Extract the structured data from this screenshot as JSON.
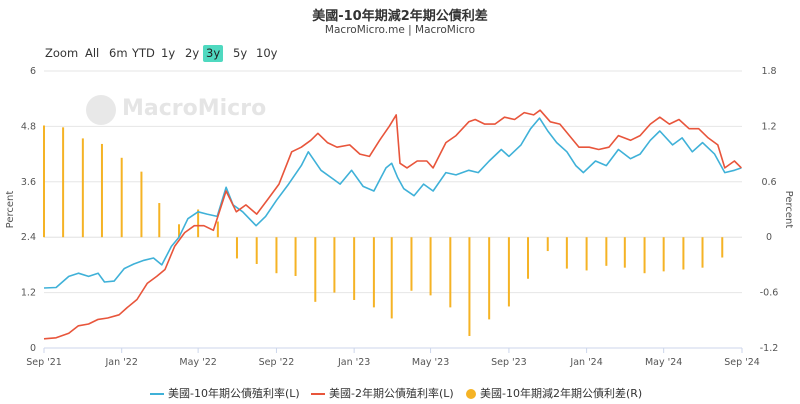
{
  "header": {
    "title": "美國-10年期減2年期公債利差",
    "subtitle": "MacroMicro.me | MacroMicro"
  },
  "watermark": "MacroMicro",
  "range_selector": {
    "items": [
      "Zoom",
      "All",
      "6m",
      "YTD",
      "1y",
      "2y",
      "3y",
      "5y",
      "10y"
    ],
    "active": "3y"
  },
  "colors": {
    "ten_year": "#3fb1d8",
    "two_year": "#e8553b",
    "spread": "#f5b325"
  },
  "chart_data": {
    "type": "line",
    "title": "美國-10年期減2年期公債利差",
    "subtitle": "MacroMicro.me | MacroMicro",
    "y_left_label": "Percent",
    "y_right_label": "Percent",
    "y_left_range": [
      0,
      6
    ],
    "y_right_range": [
      -1.2,
      1.8
    ],
    "y_left_ticks": [
      "0",
      "1.2",
      "2.4",
      "3.6",
      "4.8",
      "6"
    ],
    "y_right_ticks": [
      "-1.2",
      "-0.6",
      "0",
      "0.6",
      "1.2",
      "1.8"
    ],
    "x_range": [
      "2021-09-01",
      "2024-09-01"
    ],
    "x_ticks": [
      {
        "date": "2021-09-01",
        "label": "Sep '21"
      },
      {
        "date": "2022-01-01",
        "label": "Jan '22"
      },
      {
        "date": "2022-05-01",
        "label": "May '22"
      },
      {
        "date": "2022-09-01",
        "label": "Sep '22"
      },
      {
        "date": "2023-01-01",
        "label": "Jan '23"
      },
      {
        "date": "2023-05-01",
        "label": "May '23"
      },
      {
        "date": "2023-09-01",
        "label": "Sep '23"
      },
      {
        "date": "2024-01-01",
        "label": "Jan '24"
      },
      {
        "date": "2024-05-01",
        "label": "May '24"
      },
      {
        "date": "2024-09-01",
        "label": "Sep '24"
      }
    ],
    "grid": "horizontal",
    "legend_position": "bottom",
    "series": [
      {
        "name": "美國-10年期公債殖利率(L)",
        "type": "line",
        "axis": "left",
        "points": [
          [
            "2021-09-01",
            1.3
          ],
          [
            "2021-09-20",
            1.31
          ],
          [
            "2021-10-10",
            1.55
          ],
          [
            "2021-10-25",
            1.62
          ],
          [
            "2021-11-10",
            1.55
          ],
          [
            "2021-11-25",
            1.62
          ],
          [
            "2021-12-05",
            1.43
          ],
          [
            "2021-12-20",
            1.45
          ],
          [
            "2022-01-05",
            1.72
          ],
          [
            "2022-01-20",
            1.82
          ],
          [
            "2022-02-05",
            1.9
          ],
          [
            "2022-02-20",
            1.95
          ],
          [
            "2022-03-05",
            1.8
          ],
          [
            "2022-03-20",
            2.2
          ],
          [
            "2022-04-01",
            2.4
          ],
          [
            "2022-04-15",
            2.8
          ],
          [
            "2022-05-01",
            2.95
          ],
          [
            "2022-05-15",
            2.9
          ],
          [
            "2022-05-31",
            2.85
          ],
          [
            "2022-06-14",
            3.48
          ],
          [
            "2022-06-25",
            3.1
          ],
          [
            "2022-07-10",
            2.95
          ],
          [
            "2022-07-31",
            2.65
          ],
          [
            "2022-08-15",
            2.85
          ],
          [
            "2022-09-01",
            3.2
          ],
          [
            "2022-09-20",
            3.55
          ],
          [
            "2022-10-10",
            3.95
          ],
          [
            "2022-10-21",
            4.25
          ],
          [
            "2022-11-10",
            3.85
          ],
          [
            "2022-11-30",
            3.65
          ],
          [
            "2022-12-10",
            3.55
          ],
          [
            "2022-12-28",
            3.85
          ],
          [
            "2023-01-15",
            3.5
          ],
          [
            "2023-02-01",
            3.4
          ],
          [
            "2023-02-20",
            3.9
          ],
          [
            "2023-03-01",
            4.0
          ],
          [
            "2023-03-10",
            3.7
          ],
          [
            "2023-03-20",
            3.45
          ],
          [
            "2023-04-05",
            3.3
          ],
          [
            "2023-04-20",
            3.55
          ],
          [
            "2023-05-05",
            3.4
          ],
          [
            "2023-05-25",
            3.8
          ],
          [
            "2023-06-10",
            3.75
          ],
          [
            "2023-06-30",
            3.85
          ],
          [
            "2023-07-15",
            3.8
          ],
          [
            "2023-08-01",
            4.05
          ],
          [
            "2023-08-20",
            4.3
          ],
          [
            "2023-09-01",
            4.15
          ],
          [
            "2023-09-20",
            4.4
          ],
          [
            "2023-10-05",
            4.75
          ],
          [
            "2023-10-19",
            4.98
          ],
          [
            "2023-11-01",
            4.7
          ],
          [
            "2023-11-15",
            4.45
          ],
          [
            "2023-12-01",
            4.25
          ],
          [
            "2023-12-15",
            3.95
          ],
          [
            "2023-12-27",
            3.8
          ],
          [
            "2024-01-15",
            4.05
          ],
          [
            "2024-02-01",
            3.95
          ],
          [
            "2024-02-20",
            4.3
          ],
          [
            "2024-03-10",
            4.1
          ],
          [
            "2024-03-25",
            4.2
          ],
          [
            "2024-04-10",
            4.5
          ],
          [
            "2024-04-25",
            4.7
          ],
          [
            "2024-05-15",
            4.4
          ],
          [
            "2024-05-30",
            4.55
          ],
          [
            "2024-06-15",
            4.25
          ],
          [
            "2024-07-01",
            4.45
          ],
          [
            "2024-07-20",
            4.2
          ],
          [
            "2024-08-05",
            3.8
          ],
          [
            "2024-08-20",
            3.85
          ],
          [
            "2024-08-31",
            3.9
          ]
        ]
      },
      {
        "name": "美國-2年期公債殖利率(L)",
        "type": "line",
        "axis": "left",
        "points": [
          [
            "2021-09-01",
            0.2
          ],
          [
            "2021-09-20",
            0.22
          ],
          [
            "2021-10-10",
            0.32
          ],
          [
            "2021-10-25",
            0.48
          ],
          [
            "2021-11-10",
            0.52
          ],
          [
            "2021-11-25",
            0.62
          ],
          [
            "2021-12-10",
            0.65
          ],
          [
            "2021-12-28",
            0.72
          ],
          [
            "2022-01-10",
            0.88
          ],
          [
            "2022-01-25",
            1.05
          ],
          [
            "2022-02-10",
            1.4
          ],
          [
            "2022-02-25",
            1.55
          ],
          [
            "2022-03-10",
            1.7
          ],
          [
            "2022-03-25",
            2.2
          ],
          [
            "2022-04-10",
            2.5
          ],
          [
            "2022-04-25",
            2.65
          ],
          [
            "2022-05-10",
            2.65
          ],
          [
            "2022-05-25",
            2.55
          ],
          [
            "2022-06-14",
            3.4
          ],
          [
            "2022-06-30",
            2.95
          ],
          [
            "2022-07-15",
            3.1
          ],
          [
            "2022-08-01",
            2.9
          ],
          [
            "2022-08-20",
            3.25
          ],
          [
            "2022-09-05",
            3.55
          ],
          [
            "2022-09-25",
            4.25
          ],
          [
            "2022-10-10",
            4.35
          ],
          [
            "2022-10-25",
            4.5
          ],
          [
            "2022-11-05",
            4.65
          ],
          [
            "2022-11-20",
            4.45
          ],
          [
            "2022-12-05",
            4.35
          ],
          [
            "2022-12-25",
            4.4
          ],
          [
            "2023-01-10",
            4.2
          ],
          [
            "2023-01-25",
            4.15
          ],
          [
            "2023-02-10",
            4.5
          ],
          [
            "2023-02-25",
            4.8
          ],
          [
            "2023-03-08",
            5.05
          ],
          [
            "2023-03-14",
            4.0
          ],
          [
            "2023-03-25",
            3.9
          ],
          [
            "2023-04-10",
            4.05
          ],
          [
            "2023-04-25",
            4.05
          ],
          [
            "2023-05-05",
            3.9
          ],
          [
            "2023-05-25",
            4.45
          ],
          [
            "2023-06-10",
            4.6
          ],
          [
            "2023-06-30",
            4.9
          ],
          [
            "2023-07-10",
            4.95
          ],
          [
            "2023-07-25",
            4.85
          ],
          [
            "2023-08-10",
            4.85
          ],
          [
            "2023-08-25",
            5.0
          ],
          [
            "2023-09-10",
            4.95
          ],
          [
            "2023-09-25",
            5.1
          ],
          [
            "2023-10-10",
            5.05
          ],
          [
            "2023-10-20",
            5.15
          ],
          [
            "2023-11-05",
            4.9
          ],
          [
            "2023-11-20",
            4.85
          ],
          [
            "2023-12-05",
            4.6
          ],
          [
            "2023-12-20",
            4.35
          ],
          [
            "2024-01-05",
            4.35
          ],
          [
            "2024-01-20",
            4.3
          ],
          [
            "2024-02-05",
            4.35
          ],
          [
            "2024-02-20",
            4.6
          ],
          [
            "2024-03-10",
            4.5
          ],
          [
            "2024-03-25",
            4.6
          ],
          [
            "2024-04-10",
            4.85
          ],
          [
            "2024-04-25",
            5.0
          ],
          [
            "2024-05-10",
            4.85
          ],
          [
            "2024-05-25",
            4.95
          ],
          [
            "2024-06-10",
            4.75
          ],
          [
            "2024-06-25",
            4.75
          ],
          [
            "2024-07-10",
            4.55
          ],
          [
            "2024-07-25",
            4.4
          ],
          [
            "2024-08-05",
            3.9
          ],
          [
            "2024-08-20",
            4.05
          ],
          [
            "2024-08-31",
            3.9
          ]
        ]
      },
      {
        "name": "美國-10年期減2年期公債利差(R)",
        "type": "bar",
        "axis": "right",
        "points": [
          [
            "2021-09-01",
            1.21
          ],
          [
            "2021-10-01",
            1.19
          ],
          [
            "2021-11-01",
            1.07
          ],
          [
            "2021-12-01",
            1.01
          ],
          [
            "2022-01-01",
            0.86
          ],
          [
            "2022-02-01",
            0.71
          ],
          [
            "2022-03-01",
            0.37
          ],
          [
            "2022-04-01",
            0.14
          ],
          [
            "2022-05-01",
            0.3
          ],
          [
            "2022-06-01",
            0.17
          ],
          [
            "2022-07-01",
            -0.23
          ],
          [
            "2022-08-01",
            -0.29
          ],
          [
            "2022-09-01",
            -0.39
          ],
          [
            "2022-10-01",
            -0.42
          ],
          [
            "2022-11-01",
            -0.7
          ],
          [
            "2022-12-01",
            -0.6
          ],
          [
            "2023-01-01",
            -0.68
          ],
          [
            "2023-02-01",
            -0.76
          ],
          [
            "2023-03-01",
            -0.88
          ],
          [
            "2023-04-01",
            -0.58
          ],
          [
            "2023-05-01",
            -0.63
          ],
          [
            "2023-06-01",
            -0.76
          ],
          [
            "2023-07-01",
            -1.07
          ],
          [
            "2023-08-01",
            -0.89
          ],
          [
            "2023-09-01",
            -0.75
          ],
          [
            "2023-10-01",
            -0.45
          ],
          [
            "2023-11-01",
            -0.15
          ],
          [
            "2023-12-01",
            -0.34
          ],
          [
            "2024-01-01",
            -0.36
          ],
          [
            "2024-02-01",
            -0.31
          ],
          [
            "2024-03-01",
            -0.33
          ],
          [
            "2024-04-01",
            -0.39
          ],
          [
            "2024-05-01",
            -0.37
          ],
          [
            "2024-06-01",
            -0.35
          ],
          [
            "2024-07-01",
            -0.33
          ],
          [
            "2024-08-01",
            -0.22
          ]
        ]
      }
    ]
  }
}
